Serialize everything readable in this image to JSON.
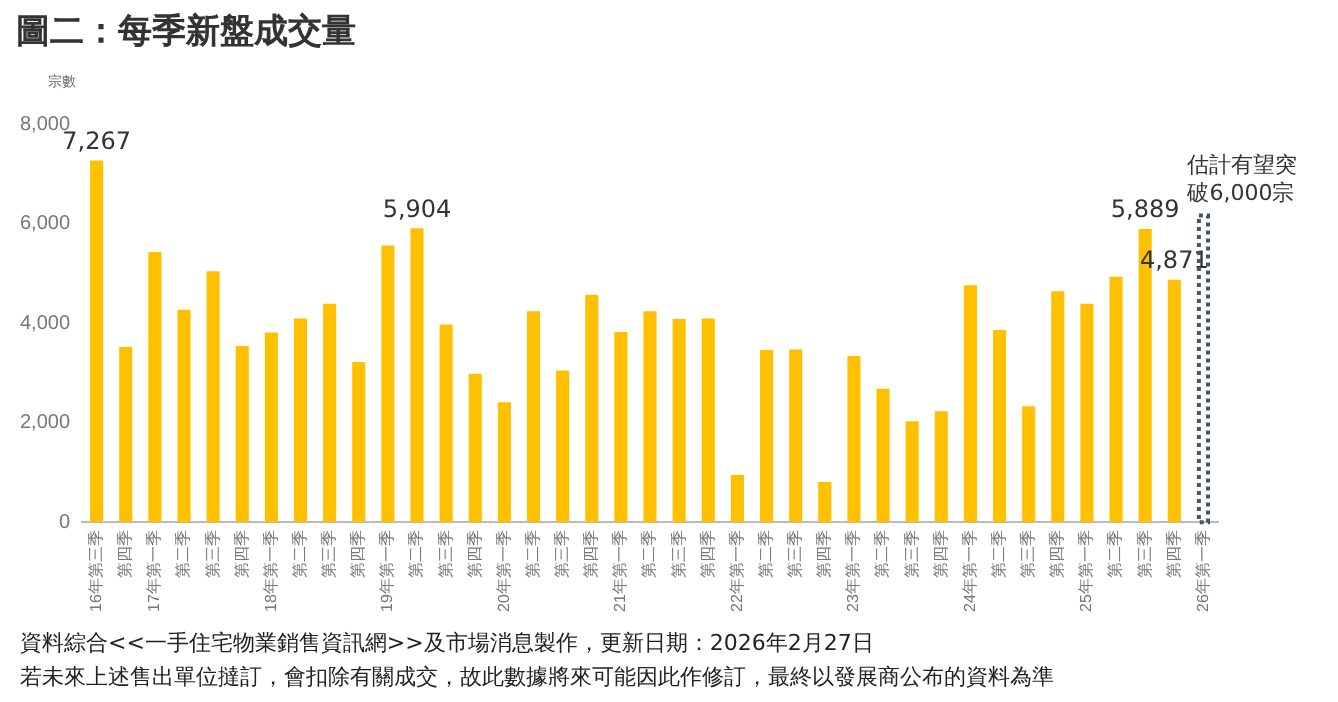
{
  "chart_data": {
    "type": "bar",
    "title": "圖二：每季新盤成交量",
    "ylabel": "宗數",
    "categories": [
      "16年第三季",
      "第四季",
      "17年第一季",
      "第二季",
      "第三季",
      "第四季",
      "18年第一季",
      "第二季",
      "第三季",
      "第四季",
      "19年第一季",
      "第二季",
      "第三季",
      "第四季",
      "20年第一季",
      "第二季",
      "第三季",
      "第四季",
      "21年第一季",
      "第二季",
      "第三季",
      "第四季",
      "22年第一季",
      "第二季",
      "第三季",
      "第四季",
      "23年第一季",
      "第二季",
      "第三季",
      "第四季",
      "24年第一季",
      "第二季",
      "第三季",
      "第四季",
      "25年第一季",
      "第二季",
      "第三季",
      "第四季",
      "26年第一季"
    ],
    "series": [
      {
        "color": "#ffc000",
        "values": [
          7267,
          3520,
          5430,
          4270,
          5040,
          3540,
          3810,
          4090,
          4390,
          3220,
          5560,
          5904,
          3970,
          2980,
          2410,
          4240,
          3050,
          4570,
          3820,
          4240,
          4080,
          4090,
          950,
          3460,
          3470,
          810,
          3340,
          2680,
          2030,
          2230,
          4760,
          3860,
          2330,
          4640,
          4390,
          4930,
          5889,
          4871,
          null
        ],
        "value_labels": [
          "7,267",
          null,
          null,
          null,
          null,
          null,
          null,
          null,
          null,
          null,
          null,
          "5,904",
          null,
          null,
          null,
          null,
          null,
          null,
          null,
          null,
          null,
          null,
          null,
          null,
          null,
          null,
          null,
          null,
          null,
          null,
          null,
          null,
          null,
          null,
          null,
          null,
          "5,889",
          "4,871",
          null
        ]
      },
      {
        "color": "#44546a",
        "line_style": "dotted",
        "values": [
          null,
          null,
          null,
          null,
          null,
          null,
          null,
          null,
          null,
          null,
          null,
          null,
          null,
          null,
          null,
          null,
          null,
          null,
          null,
          null,
          null,
          null,
          null,
          null,
          null,
          null,
          null,
          null,
          null,
          null,
          null,
          null,
          null,
          null,
          null,
          null,
          null,
          null,
          6200
        ]
      }
    ],
    "ylim": [
      0,
      8000
    ],
    "yticks": [
      0,
      {
        "value": 2000,
        "label": "2,000"
      },
      {
        "value": 4000,
        "label": "4,000"
      },
      {
        "value": 6000,
        "label": "6,000"
      },
      {
        "value": 8000,
        "label": "8,000"
      }
    ],
    "grid": false,
    "legend": false,
    "annotations": [
      {
        "text": "估計有望突破6,000宗",
        "x": "26年第一季",
        "y": 6200
      },
      "資料綜合<<一手住宅物業銷售資訊網>>及市場消息製作，更新日期：2026年2月27日",
      "若未來上述售出單位撻訂，會扣除有關成交，故此數據將來可能因此作修訂，最終以發展商公布的資料為準"
    ]
  }
}
